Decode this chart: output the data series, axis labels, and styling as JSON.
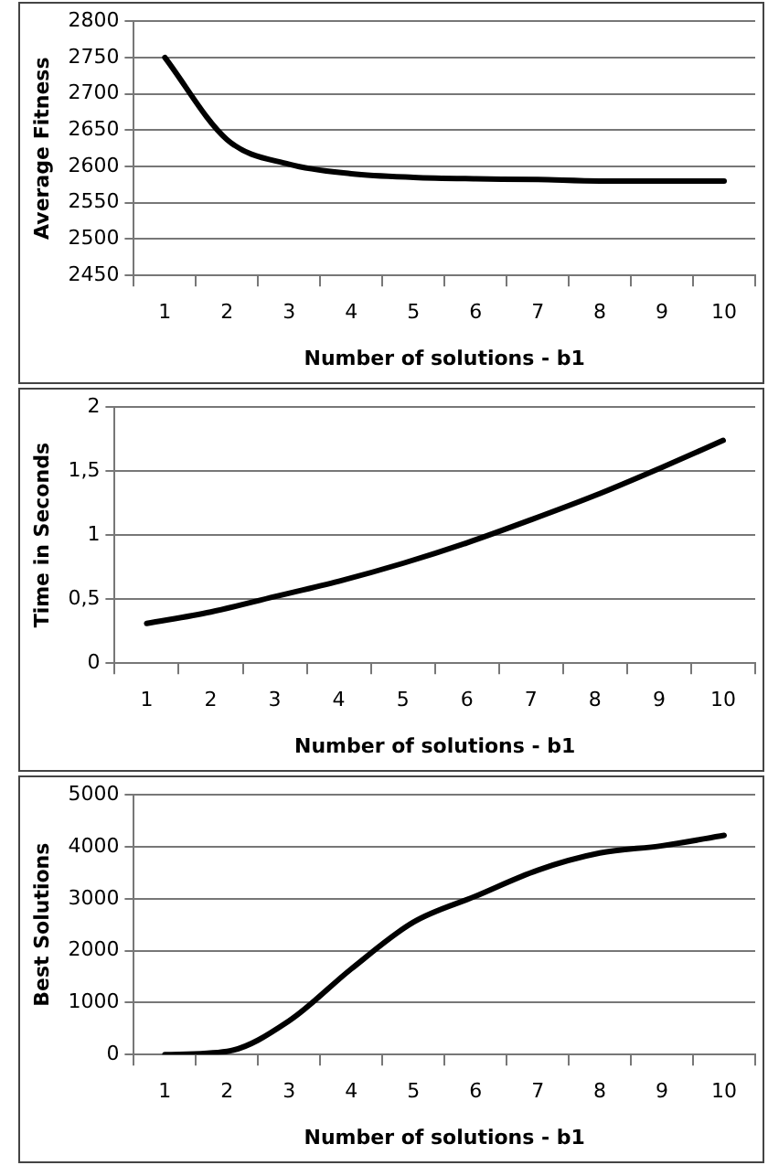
{
  "chart_data": [
    {
      "type": "line",
      "xlabel": "Number of solutions - b1",
      "ylabel": "Average Fitness",
      "categories": [
        "1",
        "2",
        "3",
        "4",
        "5",
        "6",
        "7",
        "8",
        "9",
        "10"
      ],
      "series": [
        {
          "color": "#000000",
          "values": [
            2750,
            2637,
            2603,
            2590,
            2585,
            2583,
            2582,
            2580,
            2580,
            2580
          ]
        }
      ],
      "ylim": [
        2450,
        2800
      ],
      "yticks": [
        2450,
        2500,
        2550,
        2600,
        2650,
        2700,
        2750,
        2800
      ],
      "grid": "y",
      "legend": false,
      "marker": "none"
    },
    {
      "type": "line",
      "xlabel": "Number of solutions - b1",
      "ylabel": "Time in Seconds",
      "categories": [
        "1",
        "2",
        "3",
        "4",
        "5",
        "6",
        "7",
        "8",
        "9",
        "10"
      ],
      "series": [
        {
          "color": "#000000",
          "values": [
            0.31,
            0.4,
            0.52,
            0.64,
            0.78,
            0.94,
            1.12,
            1.31,
            1.52,
            1.74
          ]
        }
      ],
      "ylim": [
        0,
        2
      ],
      "yticks": [
        0,
        {
          "value": 0.5,
          "label": "0,5"
        },
        1,
        {
          "value": 1.5,
          "label": "1,5"
        },
        2
      ],
      "grid": "y",
      "legend": false,
      "marker": "none"
    },
    {
      "type": "line",
      "xlabel": "Number of solutions - b1",
      "ylabel": "Best Solutions",
      "categories": [
        "1",
        "2",
        "3",
        "4",
        "5",
        "6",
        "7",
        "8",
        "9",
        "10"
      ],
      "series": [
        {
          "color": "#000000",
          "values": [
            0,
            60,
            650,
            1650,
            2550,
            3050,
            3550,
            3880,
            4020,
            4220
          ]
        }
      ],
      "ylim": [
        0,
        5000
      ],
      "yticks": [
        0,
        1000,
        2000,
        3000,
        4000,
        5000
      ],
      "grid": "y",
      "legend": false,
      "marker": "none"
    }
  ]
}
